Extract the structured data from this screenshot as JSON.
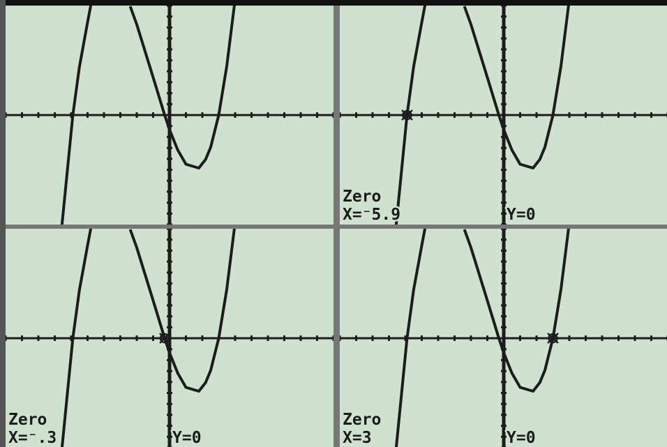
{
  "screens": [
    {
      "label": "Zero",
      "x_readout": "X=⁻5.9",
      "y_readout": "Y=0"
    },
    {
      "label": "Zero",
      "x_readout": "X=⁻.3",
      "y_readout": "Y=0"
    },
    {
      "label": "Zero",
      "x_readout": "X=3",
      "y_readout": "Y=0"
    }
  ]
}
